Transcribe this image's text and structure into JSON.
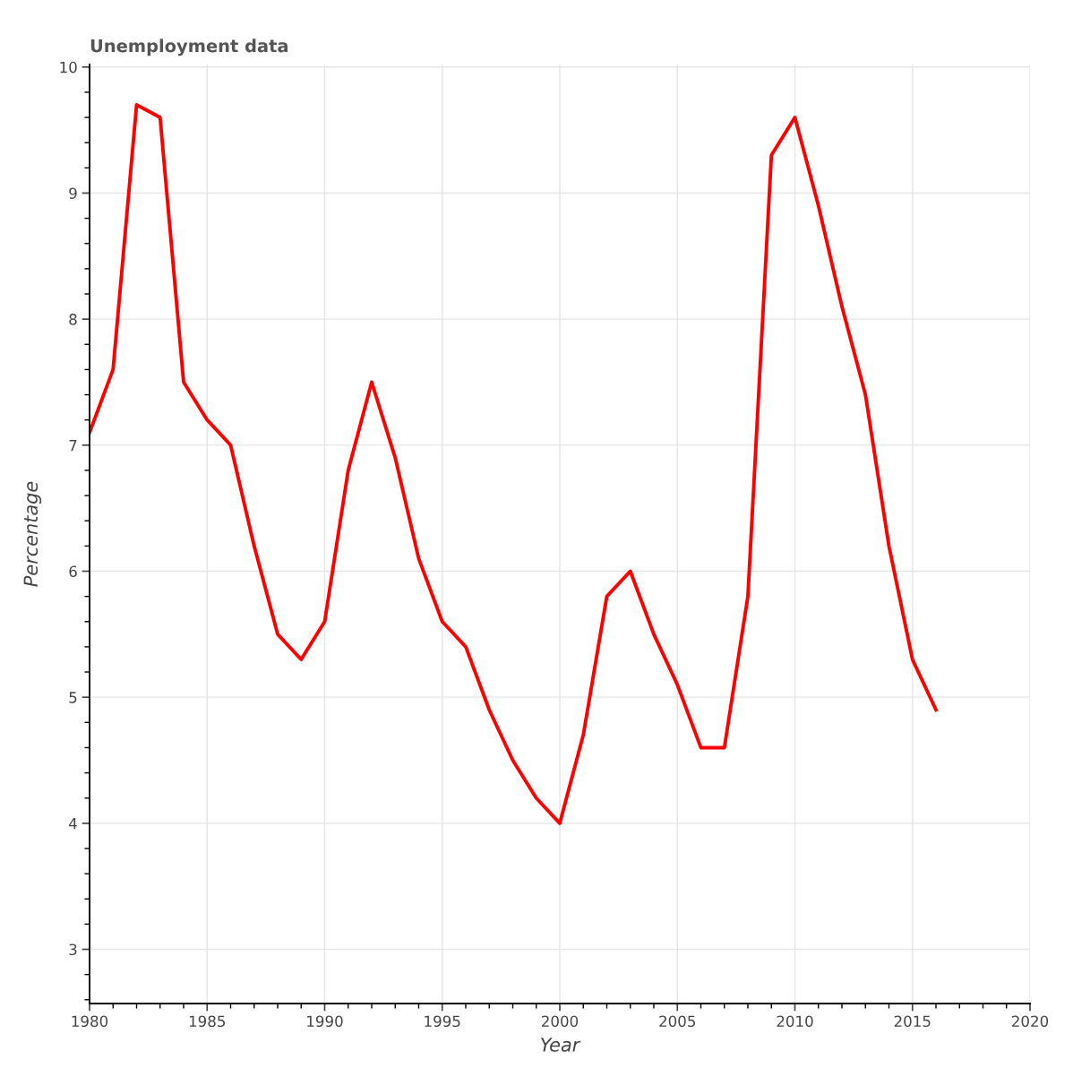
{
  "chart_data": {
    "type": "line",
    "title": "Unemployment data",
    "xlabel": "Year",
    "ylabel": "Percentage",
    "x": [
      1980,
      1981,
      1982,
      1983,
      1984,
      1985,
      1986,
      1987,
      1988,
      1989,
      1990,
      1991,
      1992,
      1993,
      1994,
      1995,
      1996,
      1997,
      1998,
      1999,
      2000,
      2001,
      2002,
      2003,
      2004,
      2005,
      2006,
      2007,
      2008,
      2009,
      2010,
      2011,
      2012,
      2013,
      2014,
      2015,
      2016
    ],
    "series": [
      {
        "color": "#ff0000",
        "values": [
          7.1,
          7.6,
          9.7,
          9.6,
          7.5,
          7.2,
          7.0,
          6.2,
          5.5,
          5.3,
          5.6,
          6.8,
          7.5,
          6.9,
          6.1,
          5.6,
          5.4,
          4.9,
          4.5,
          4.2,
          4.0,
          4.7,
          5.8,
          6.0,
          5.5,
          5.1,
          4.6,
          4.6,
          5.8,
          9.3,
          9.6,
          8.9,
          8.1,
          7.4,
          6.2,
          5.3,
          4.9
        ]
      }
    ],
    "xlim": [
      1980,
      2020
    ],
    "ylim": [
      2.57,
      10.02
    ],
    "xticks": [
      1980,
      1985,
      1990,
      1995,
      2000,
      2005,
      2010,
      2015,
      2020
    ],
    "yticks": [
      3,
      4,
      5,
      6,
      7,
      8,
      9,
      10
    ],
    "grid": true,
    "line_style": "solid",
    "marker": "none"
  }
}
